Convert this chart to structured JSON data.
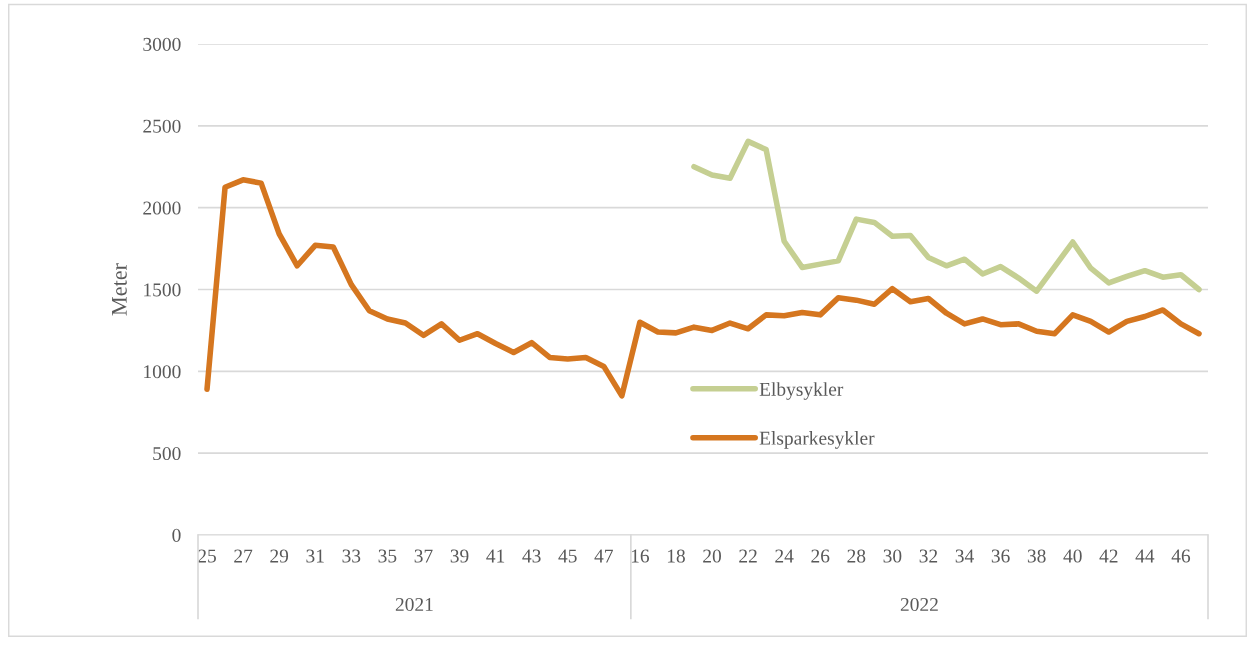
{
  "chart_data": {
    "type": "line",
    "ylabel": "Meter",
    "categories": [
      "25",
      null,
      "27",
      null,
      "29",
      null,
      "31",
      null,
      "33",
      null,
      "35",
      null,
      "37",
      null,
      "39",
      null,
      "41",
      null,
      "43",
      null,
      "45",
      null,
      "47",
      null,
      "16",
      null,
      "18",
      null,
      "20",
      null,
      "22",
      null,
      "24",
      null,
      "26",
      null,
      "28",
      null,
      "30",
      null,
      "32",
      null,
      "34",
      null,
      "36",
      null,
      "38",
      null,
      "40",
      null,
      "42",
      null,
      "44",
      null,
      "46",
      null
    ],
    "series": [
      {
        "name": "Elbysykler",
        "color": "#c5cf92",
        "values": [
          null,
          null,
          null,
          null,
          null,
          null,
          null,
          null,
          null,
          null,
          null,
          null,
          null,
          null,
          null,
          null,
          null,
          null,
          null,
          null,
          null,
          null,
          null,
          null,
          null,
          null,
          null,
          2250,
          2200,
          2180,
          2405,
          2355,
          1795,
          1635,
          1655,
          1675,
          1930,
          1910,
          1825,
          1830,
          1695,
          1645,
          1685,
          1595,
          1640,
          1570,
          1490,
          1640,
          1790,
          1630,
          1540,
          1580,
          1615,
          1575,
          1590,
          1500
        ]
      },
      {
        "name": "Elsparkesykler",
        "color": "#d5761f",
        "values": [
          890,
          2125,
          2170,
          2150,
          1840,
          1645,
          1770,
          1760,
          1530,
          1370,
          1320,
          1295,
          1220,
          1290,
          1190,
          1230,
          1170,
          1115,
          1175,
          1085,
          1075,
          1085,
          1030,
          850,
          1300,
          1240,
          1235,
          1270,
          1250,
          1295,
          1260,
          1345,
          1340,
          1360,
          1345,
          1450,
          1435,
          1410,
          1505,
          1425,
          1445,
          1355,
          1290,
          1320,
          1285,
          1290,
          1245,
          1230,
          1345,
          1305,
          1240,
          1305,
          1335,
          1375,
          1290,
          1230
        ]
      }
    ],
    "annotations": [
      "2021",
      "2022"
    ],
    "ylim": [
      0,
      3000
    ],
    "yticks": [
      0,
      500,
      1000,
      1500,
      2000,
      2500,
      3000
    ],
    "grid": "y",
    "legend": "bottom",
    "marker": "none",
    "line_style": "solid"
  }
}
